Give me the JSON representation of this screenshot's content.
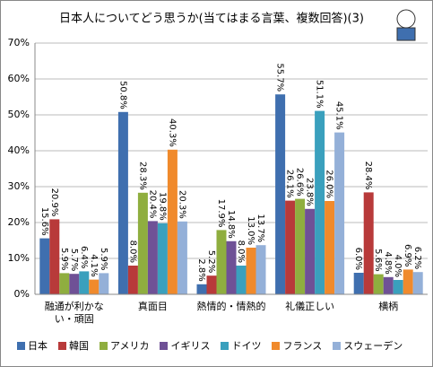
{
  "chart_data": {
    "type": "bar",
    "title": "日本人についてどう思うか(当てはまる言葉、複数回答)(3)",
    "categories": [
      "融通が利かない・頑固",
      "真面目",
      "熱情的・情熱的",
      "礼儀正しい",
      "横柄"
    ],
    "series": [
      {
        "name": "日本",
        "color": "#3f6faf",
        "values": [
          15.6,
          50.8,
          2.8,
          55.7,
          6.0
        ],
        "value_labels": [
          "15.6%",
          "50.8%",
          "2.8%",
          "55.7%",
          "6.0%"
        ]
      },
      {
        "name": "韓国",
        "color": "#b83a3a",
        "values": [
          20.9,
          8.0,
          5.2,
          26.1,
          28.4
        ],
        "value_labels": [
          "20.9%",
          "8.0%",
          "5.2%",
          "26.1%",
          "28.4%"
        ]
      },
      {
        "name": "アメリカ",
        "color": "#8fae3f",
        "values": [
          5.9,
          28.3,
          17.9,
          26.6,
          5.6
        ],
        "value_labels": [
          "5.9%",
          "28.3%",
          "17.9%",
          "26.6%",
          "5.6%"
        ]
      },
      {
        "name": "イギリス",
        "color": "#6f5196",
        "values": [
          5.7,
          20.4,
          14.8,
          23.8,
          4.8
        ],
        "value_labels": [
          "5.7%",
          "20.4%",
          "14.8%",
          "23.8%",
          "4.8%"
        ]
      },
      {
        "name": "ドイツ",
        "color": "#3aa0bd",
        "values": [
          6.4,
          19.8,
          8.0,
          51.1,
          4.0
        ],
        "value_labels": [
          "6.4%",
          "19.8%",
          "8.0%",
          "51.1%",
          "4.0%"
        ]
      },
      {
        "name": "フランス",
        "color": "#f08a2c",
        "values": [
          4.1,
          40.3,
          13.0,
          26.0,
          6.9
        ],
        "value_labels": [
          "4.1%",
          "40.3%",
          "13.0%",
          "26.0%",
          "6.9%"
        ]
      },
      {
        "name": "スウェーデン",
        "color": "#94b0d8",
        "values": [
          5.9,
          20.3,
          13.7,
          45.1,
          6.2
        ],
        "value_labels": [
          "5.9%",
          "20.3%",
          "13.7%",
          "45.1%",
          "6.2%"
        ]
      }
    ],
    "ylim": [
      0,
      70
    ],
    "yticks": [
      {
        "value": 0,
        "label": "0%"
      },
      {
        "value": 10,
        "label": "10%"
      },
      {
        "value": 20,
        "label": "20%"
      },
      {
        "value": 30,
        "label": "30%"
      },
      {
        "value": 40,
        "label": "40%"
      },
      {
        "value": 50,
        "label": "50%"
      },
      {
        "value": 60,
        "label": "60%"
      },
      {
        "value": 70,
        "label": "70%"
      }
    ],
    "grid": true
  }
}
